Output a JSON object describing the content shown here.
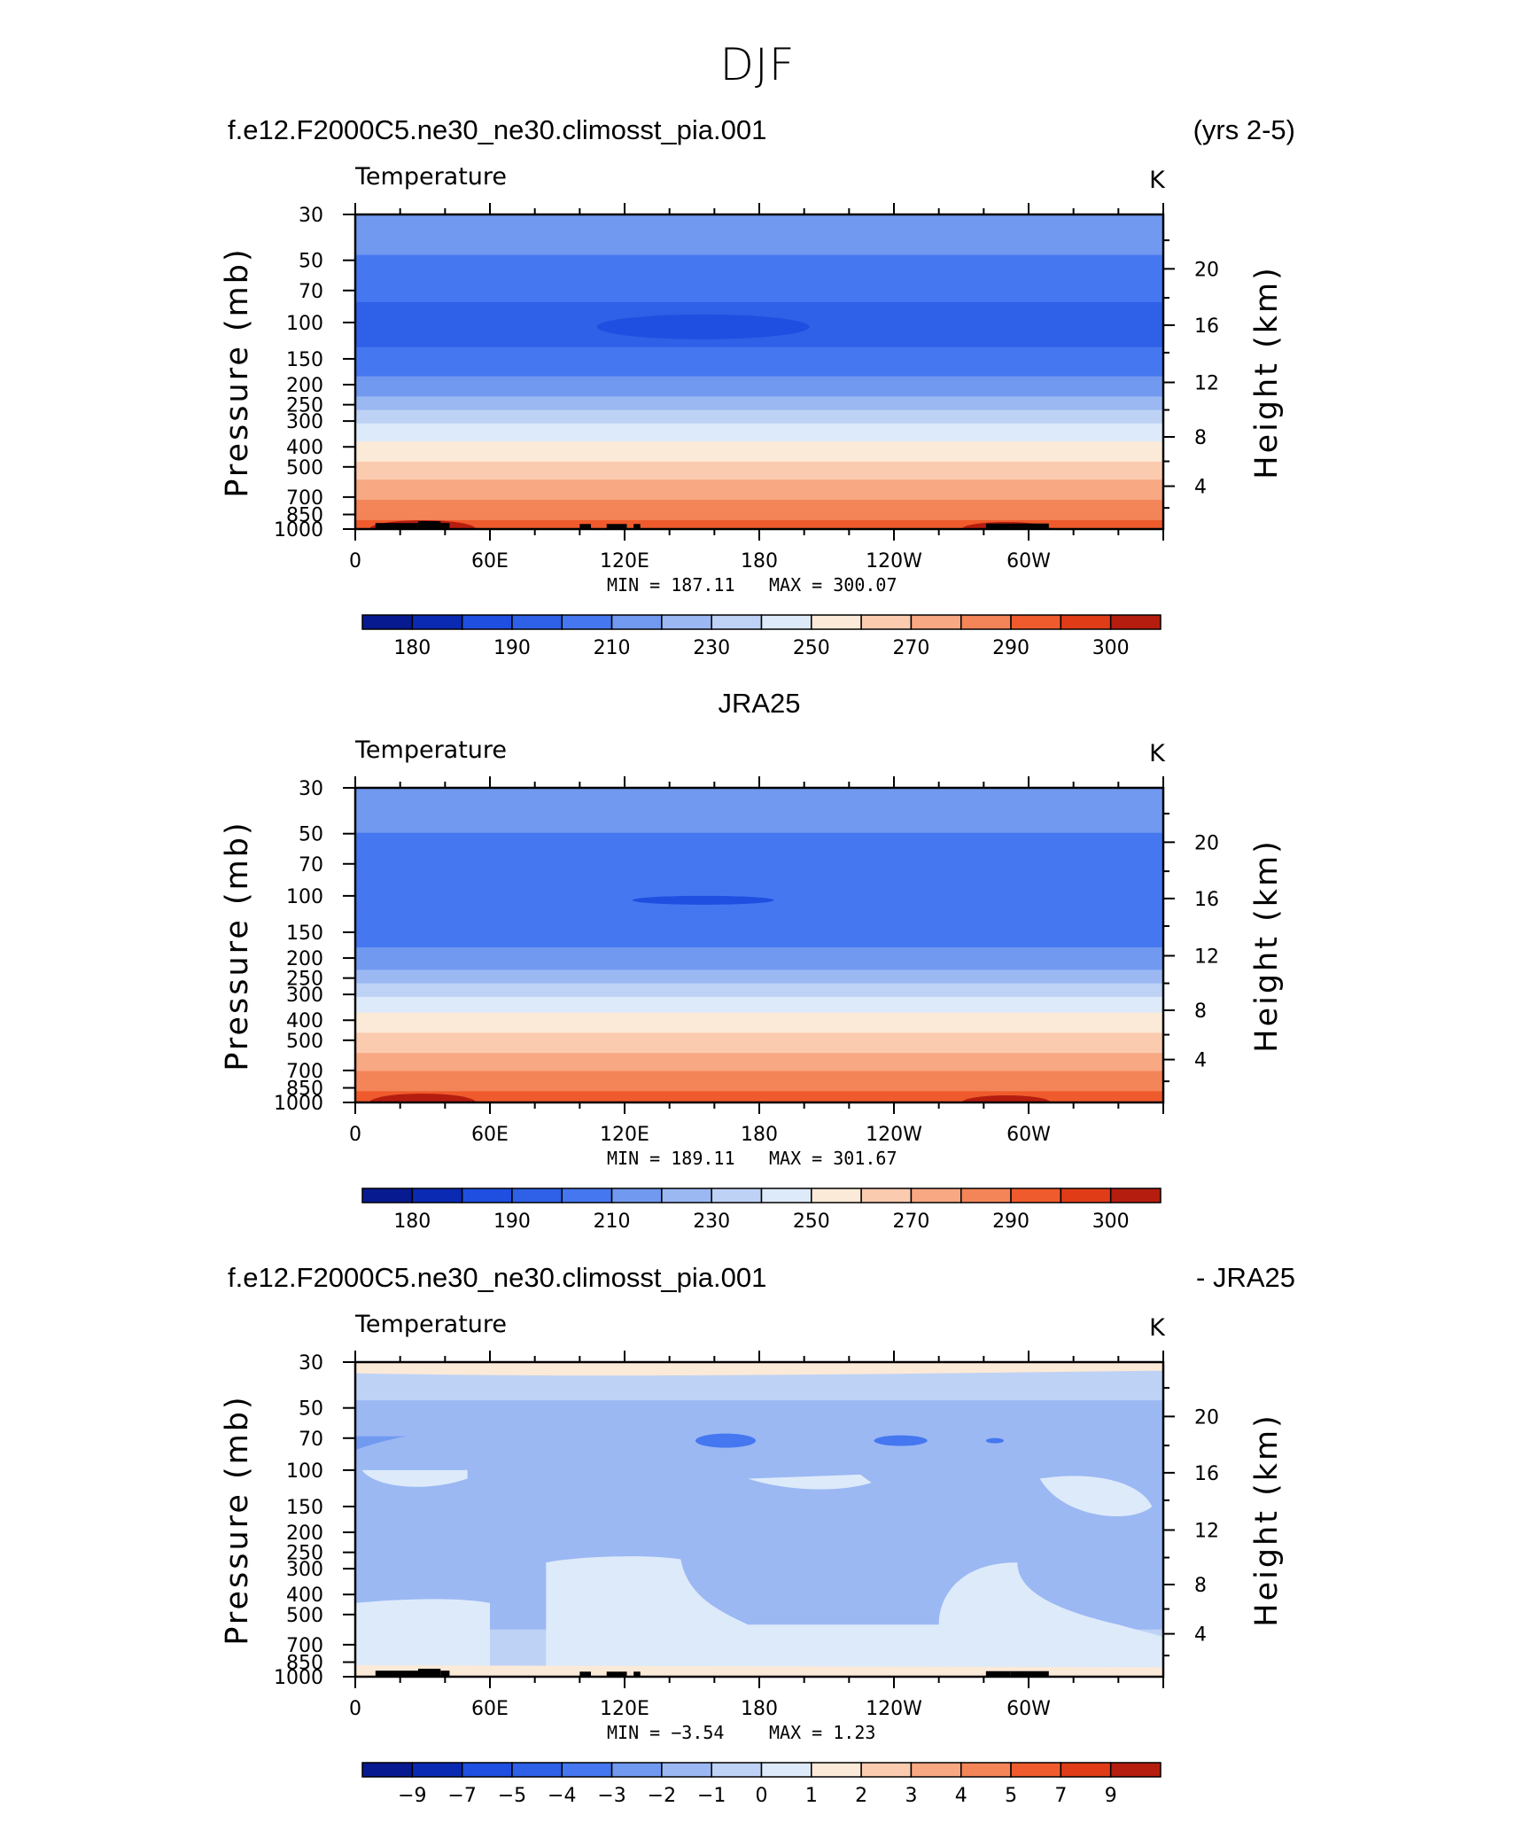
{
  "figure": {
    "title": "DJF",
    "panels": [
      {
        "id": "model",
        "header_left": "f.e12.F2000C5.ne30_ne30.climosst_pia.001",
        "header_right": "(yrs 2-5)",
        "header_center": "",
        "variable": "Temperature",
        "units": "K",
        "min_label": "MIN =  187.11",
        "max_label": "MAX =  300.07",
        "colorbar_labels": [
          "180",
          "190",
          "210",
          "230",
          "250",
          "270",
          "290",
          "300"
        ]
      },
      {
        "id": "obs",
        "header_left": "",
        "header_right": "",
        "header_center": "JRA25",
        "variable": "Temperature",
        "units": "K",
        "min_label": "MIN =  189.11",
        "max_label": "MAX =  301.67",
        "colorbar_labels": [
          "180",
          "190",
          "210",
          "230",
          "250",
          "270",
          "290",
          "300"
        ]
      },
      {
        "id": "diff",
        "header_left": "f.e12.F2000C5.ne30_ne30.climosst_pia.001",
        "header_right": "- JRA25",
        "header_center": "",
        "variable": "Temperature",
        "units": "K",
        "min_label": "MIN =   −3.54",
        "max_label": "MAX =    1.23",
        "colorbar_labels": [
          "−9",
          "−7",
          "−5",
          "−4",
          "−3",
          "−2",
          "−1",
          "0",
          "1",
          "2",
          "3",
          "4",
          "5",
          "7",
          "9"
        ]
      }
    ],
    "colors": {
      "abs_scale": [
        "#081a8f",
        "#0a2ab3",
        "#1f4fe0",
        "#2e60e8",
        "#4577f0",
        "#7199ef",
        "#9bb8f3",
        "#bed2f5",
        "#ddeafa",
        "#fcead8",
        "#fbcbb0",
        "#f8a883",
        "#f48559",
        "#ef5b2c",
        "#df3c17",
        "#b51d0f",
        "#8a0a0a"
      ],
      "diff_scale": [
        "#081a8f",
        "#0a2ab3",
        "#1f4fe0",
        "#2e60e8",
        "#4577f0",
        "#7199ef",
        "#9bb8f3",
        "#bed2f5",
        "#ddeafa",
        "#fcead8",
        "#fbcbb0",
        "#f8a883",
        "#f48559",
        "#ef5b2c",
        "#df3c17",
        "#b51d0f"
      ],
      "topography": "#000000"
    }
  },
  "chart_data": [
    {
      "type": "heatmap",
      "title": "f.e12.F2000C5.ne30_ne30.climosst_pia.001 (yrs 2-5)",
      "subtitle": "Temperature",
      "units": "K",
      "xlabel": "",
      "ylabel": "Pressure (mb)",
      "ylabel_right": "Height (km)",
      "x_ticks": [
        "0",
        "60E",
        "120E",
        "180",
        "120W",
        "60W"
      ],
      "x_range": [
        0,
        360
      ],
      "y_ticks": [
        30,
        50,
        70,
        100,
        150,
        200,
        250,
        300,
        400,
        500,
        700,
        850,
        1000
      ],
      "y_range_mb": [
        30,
        1000
      ],
      "y_scale": "log",
      "height_ticks_km": [
        20,
        16,
        12,
        8,
        4
      ],
      "contour_levels": [
        180,
        185,
        190,
        200,
        210,
        220,
        230,
        240,
        250,
        260,
        270,
        280,
        290,
        295,
        300
      ],
      "zonal_profile_K": [
        {
          "p": 30,
          "t": 218
        },
        {
          "p": 40,
          "t": 213
        },
        {
          "p": 55,
          "t": 207
        },
        {
          "p": 70,
          "t": 201
        },
        {
          "p": 100,
          "t": 198
        },
        {
          "p": 130,
          "t": 200
        },
        {
          "p": 165,
          "t": 206
        },
        {
          "p": 200,
          "t": 213
        },
        {
          "p": 240,
          "t": 222
        },
        {
          "p": 280,
          "t": 233
        },
        {
          "p": 330,
          "t": 244
        },
        {
          "p": 400,
          "t": 253
        },
        {
          "p": 500,
          "t": 263
        },
        {
          "p": 650,
          "t": 275
        },
        {
          "p": 800,
          "t": 285
        },
        {
          "p": 920,
          "t": 291
        },
        {
          "p": 1000,
          "t": 294
        }
      ],
      "min": 187.11,
      "max": 300.07
    },
    {
      "type": "heatmap",
      "title": "JRA25",
      "subtitle": "Temperature",
      "units": "K",
      "xlabel": "",
      "ylabel": "Pressure (mb)",
      "ylabel_right": "Height (km)",
      "x_ticks": [
        "0",
        "60E",
        "120E",
        "180",
        "120W",
        "60W"
      ],
      "x_range": [
        0,
        360
      ],
      "y_ticks": [
        30,
        50,
        70,
        100,
        150,
        200,
        250,
        300,
        400,
        500,
        700,
        850,
        1000
      ],
      "y_range_mb": [
        30,
        1000
      ],
      "y_scale": "log",
      "height_ticks_km": [
        20,
        16,
        12,
        8,
        4
      ],
      "contour_levels": [
        180,
        185,
        190,
        200,
        210,
        220,
        230,
        240,
        250,
        260,
        270,
        280,
        290,
        295,
        300
      ],
      "zonal_profile_K": [
        {
          "p": 30,
          "t": 219
        },
        {
          "p": 40,
          "t": 214
        },
        {
          "p": 55,
          "t": 208
        },
        {
          "p": 70,
          "t": 203
        },
        {
          "p": 100,
          "t": 200
        },
        {
          "p": 130,
          "t": 202
        },
        {
          "p": 165,
          "t": 207
        },
        {
          "p": 200,
          "t": 214
        },
        {
          "p": 240,
          "t": 223
        },
        {
          "p": 280,
          "t": 234
        },
        {
          "p": 330,
          "t": 245
        },
        {
          "p": 400,
          "t": 254
        },
        {
          "p": 500,
          "t": 264
        },
        {
          "p": 650,
          "t": 276
        },
        {
          "p": 800,
          "t": 286
        },
        {
          "p": 920,
          "t": 292
        },
        {
          "p": 1000,
          "t": 295
        }
      ],
      "min": 189.11,
      "max": 301.67
    },
    {
      "type": "heatmap",
      "title": "f.e12.F2000C5.ne30_ne30.climosst_pia.001 - JRA25",
      "subtitle": "Temperature",
      "units": "K",
      "xlabel": "",
      "ylabel": "Pressure (mb)",
      "ylabel_right": "Height (km)",
      "x_ticks": [
        "0",
        "60E",
        "120E",
        "180",
        "120W",
        "60W"
      ],
      "x_range": [
        0,
        360
      ],
      "y_ticks": [
        30,
        50,
        70,
        100,
        150,
        200,
        250,
        300,
        400,
        500,
        700,
        850,
        1000
      ],
      "y_range_mb": [
        30,
        1000
      ],
      "y_scale": "log",
      "height_ticks_km": [
        20,
        16,
        12,
        8,
        4
      ],
      "contour_levels": [
        -9,
        -7,
        -5,
        -4,
        -3,
        -2,
        -1,
        0,
        1,
        2,
        3,
        4,
        5,
        7,
        9
      ],
      "zonal_profile_K": [
        {
          "p": 30,
          "t": 0.3
        },
        {
          "p": 38,
          "t": -0.6
        },
        {
          "p": 55,
          "t": -1.4
        },
        {
          "p": 75,
          "t": -2.2
        },
        {
          "p": 95,
          "t": -1.5
        },
        {
          "p": 150,
          "t": -1.4
        },
        {
          "p": 300,
          "t": -1.3
        },
        {
          "p": 500,
          "t": -1.2
        },
        {
          "p": 700,
          "t": -0.8
        },
        {
          "p": 850,
          "t": -0.6
        },
        {
          "p": 950,
          "t": 0.3
        },
        {
          "p": 1000,
          "t": 0.5
        }
      ],
      "min": -3.54,
      "max": 1.23
    }
  ]
}
